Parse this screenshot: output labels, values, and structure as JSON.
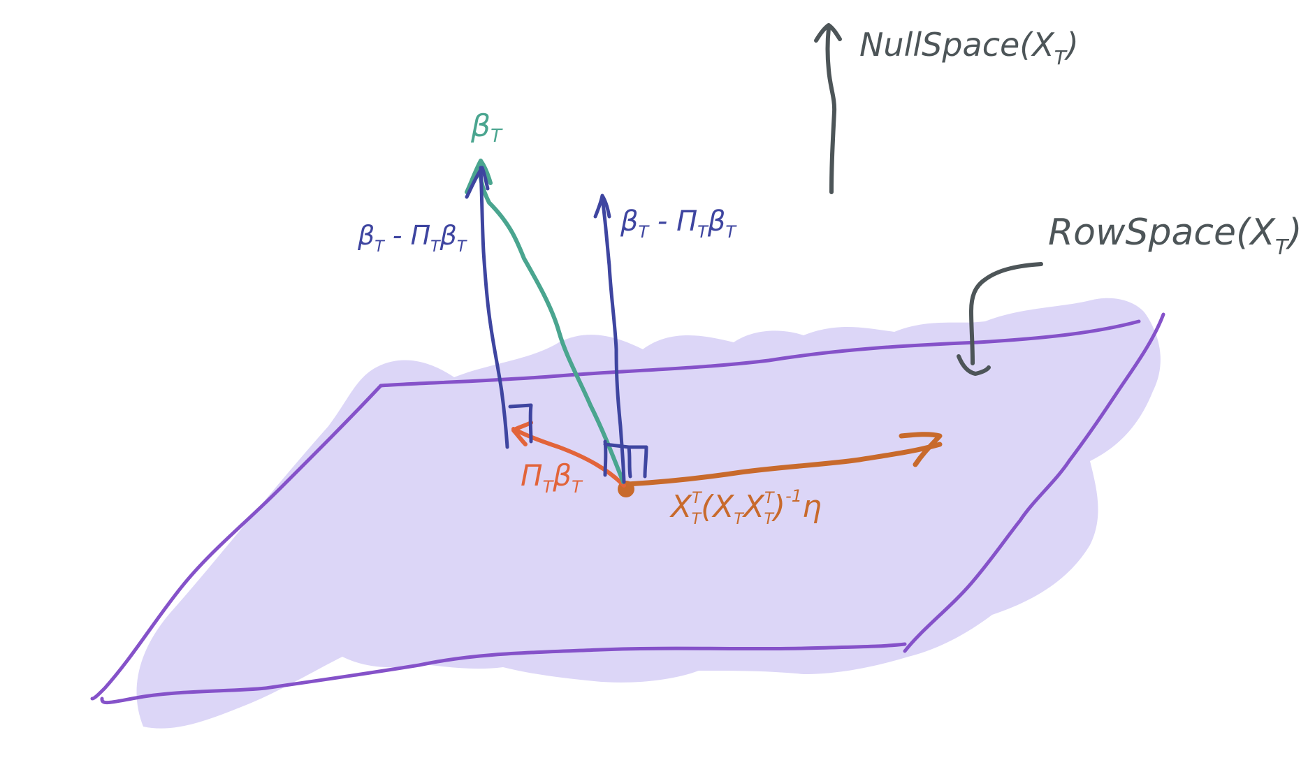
{
  "colors": {
    "plane_fill": "#dcd6f7",
    "plane_edge": "#8552c9",
    "beta": "#4aa58f",
    "residual": "#3e45a0",
    "projection": "#e2643a",
    "offset_vector": "#c86a2c",
    "annotation": "#4d5558"
  },
  "labels": {
    "nullspace": "NullSpace(X",
    "nullspace_sub": "T",
    "nullspace_close": ")",
    "rowspace": "RowSpace(X",
    "rowspace_sub": "T",
    "rowspace_close": ")",
    "beta": "β",
    "beta_sub": "T",
    "residual_left": "β",
    "residual_left_sub": "T",
    "residual_left_mid": " - Π",
    "residual_left_mid_sub": "T",
    "residual_left_end": "β",
    "residual_left_end_sub": "T",
    "residual_right": "β",
    "residual_right_sub": "T",
    "residual_right_mid": " - Π",
    "residual_right_mid_sub": "T",
    "residual_right_end": "β",
    "residual_right_end_sub": "T",
    "projection": "Π",
    "projection_sub": "T",
    "projection_end": "β",
    "projection_end_sub": "T",
    "offset_x": "X",
    "offset_x_sup": "T",
    "offset_x_sub": "T",
    "offset_paren": "(X",
    "offset_paren_sub": "T",
    "offset_x2": "X",
    "offset_x2_sup": "T",
    "offset_x2_sub": "T",
    "offset_close": ")",
    "offset_inv": "-1",
    "offset_eta": "η"
  }
}
